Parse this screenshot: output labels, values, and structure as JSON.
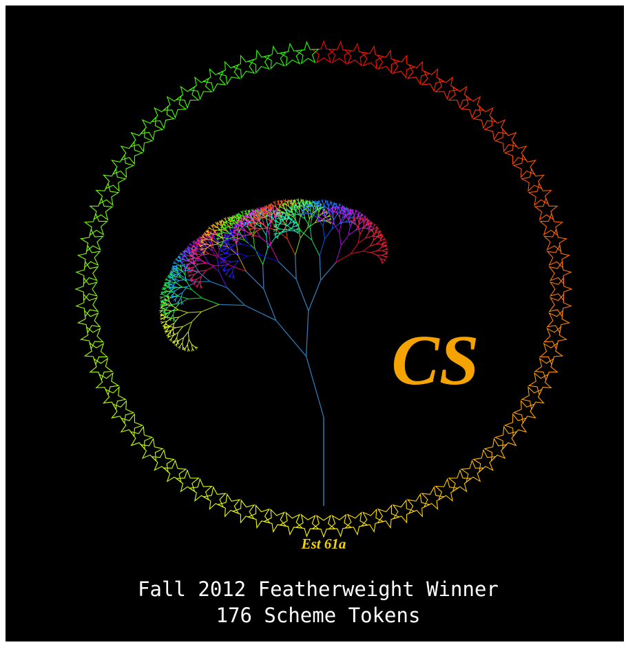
{
  "logo": {
    "mark": "CS",
    "established": "Est 61a"
  },
  "caption": {
    "line1": "Fall 2012 Featherweight Winner",
    "line2": "176 Scheme Tokens"
  }
}
